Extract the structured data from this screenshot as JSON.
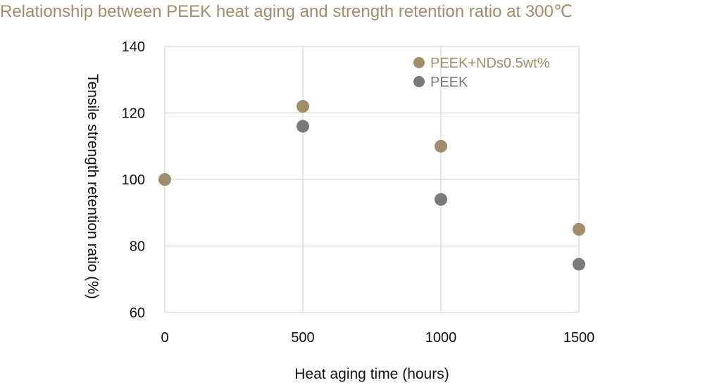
{
  "chart_data": {
    "type": "scatter",
    "title": "Relationship between PEEK heat aging and strength retention ratio at 300℃",
    "xlabel": "Heat aging time (hours)",
    "ylabel": "Tensile strength retention ratio (%)",
    "x": [
      0,
      500,
      1000,
      1500
    ],
    "x_ticks": [
      "0",
      "500",
      "1000",
      "1500"
    ],
    "y_ticks": [
      "60",
      "80",
      "100",
      "120",
      "140"
    ],
    "xlim": [
      0,
      1500
    ],
    "ylim": [
      60,
      140
    ],
    "grid": true,
    "legend_position": "top-right",
    "series": [
      {
        "name": "PEEK+NDs0.5wt%",
        "color": "#a08d6a",
        "points": [
          [
            0,
            100
          ],
          [
            500,
            122
          ],
          [
            1000,
            110
          ],
          [
            1500,
            85
          ]
        ]
      },
      {
        "name": "PEEK",
        "color": "#7a7a7a",
        "points": [
          [
            500,
            116
          ],
          [
            1000,
            94
          ],
          [
            1500,
            74.5
          ]
        ]
      }
    ]
  }
}
